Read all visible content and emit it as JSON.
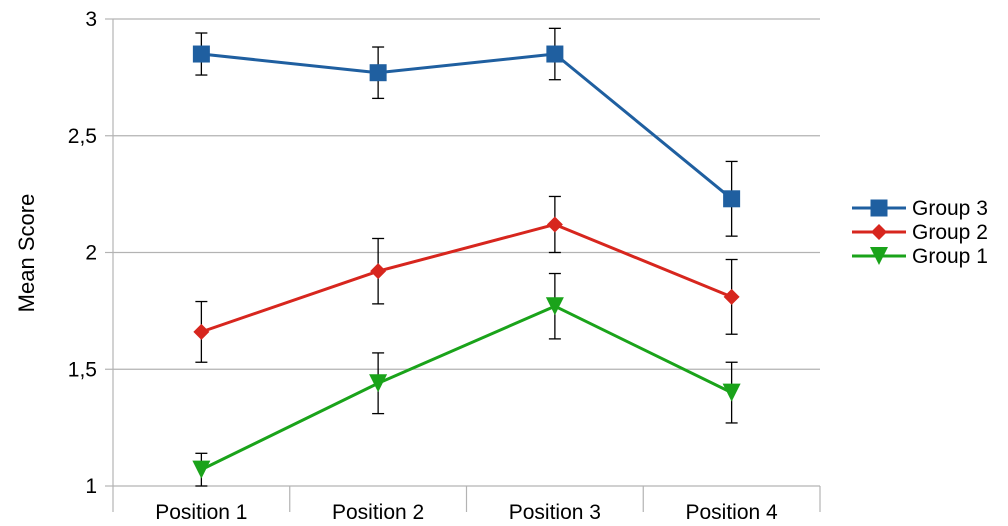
{
  "chart_data": {
    "type": "line",
    "title": "",
    "xlabel": "",
    "ylabel": "Mean Score",
    "categories": [
      "Position 1",
      "Position 2",
      "Position 3",
      "Position 4"
    ],
    "ylim": [
      1,
      3
    ],
    "yticks": [
      1,
      1.5,
      2,
      2.5,
      3
    ],
    "ytick_labels": [
      "1",
      "1,5",
      "2",
      "2,5",
      "3"
    ],
    "grid": "horizontal",
    "legend_position": "right",
    "series": [
      {
        "name": "Group 3",
        "color": "#1f5fa0",
        "marker": "square",
        "values": [
          2.85,
          2.77,
          2.85,
          2.23
        ],
        "error": [
          0.09,
          0.11,
          0.11,
          0.16
        ]
      },
      {
        "name": "Group 2",
        "color": "#d7261e",
        "marker": "diamond",
        "values": [
          1.66,
          1.92,
          2.12,
          1.81
        ],
        "error": [
          0.13,
          0.14,
          0.12,
          0.16
        ]
      },
      {
        "name": "Group 1",
        "color": "#1aa31a",
        "marker": "triangle-down",
        "values": [
          1.07,
          1.44,
          1.77,
          1.4
        ],
        "error": [
          0.07,
          0.13,
          0.14,
          0.13
        ]
      }
    ]
  }
}
